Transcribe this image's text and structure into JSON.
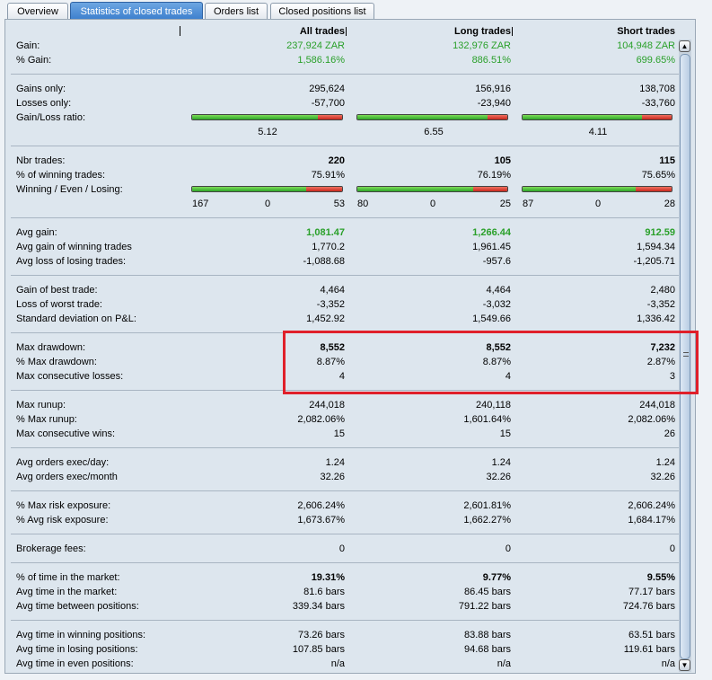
{
  "tabs": [
    {
      "label": "Overview"
    },
    {
      "label": "Statistics of closed trades"
    },
    {
      "label": "Orders list"
    },
    {
      "label": "Closed positions list"
    }
  ],
  "columns": {
    "all": "All trades",
    "long": "Long trades",
    "short": "Short trades"
  },
  "gain": {
    "label": "Gain:",
    "all": "237,924 ZAR",
    "long": "132,976 ZAR",
    "short": "104,948 ZAR"
  },
  "pct_gain": {
    "label": "% Gain:",
    "all": "1,586.16%",
    "long": "886.51%",
    "short": "699.65%"
  },
  "gains_only": {
    "label": "Gains only:",
    "all": "295,624",
    "long": "156,916",
    "short": "138,708"
  },
  "losses_only": {
    "label": "Losses only:",
    "all": "-57,700",
    "long": "-23,940",
    "short": "-33,760"
  },
  "gl_ratio": {
    "label": "Gain/Loss ratio:",
    "all": "5.12",
    "long": "6.55",
    "short": "4.11"
  },
  "gl_bar": {
    "all": 0.84,
    "long": 0.87,
    "short": 0.8
  },
  "nbr_trades": {
    "label": "Nbr trades:",
    "all": "220",
    "long": "105",
    "short": "115"
  },
  "pct_winning": {
    "label": "% of winning trades:",
    "all": "75.91%",
    "long": "76.19%",
    "short": "75.65%"
  },
  "wel": {
    "label": "Winning / Even / Losing:",
    "all": {
      "w": "167",
      "e": "0",
      "l": "53"
    },
    "long": {
      "w": "80",
      "e": "0",
      "l": "25"
    },
    "short": {
      "w": "87",
      "e": "0",
      "l": "28"
    }
  },
  "wel_bar": {
    "all": 0.76,
    "long": 0.77,
    "short": 0.76
  },
  "avg_gain": {
    "label": "Avg gain:",
    "all": "1,081.47",
    "long": "1,266.44",
    "short": "912.59"
  },
  "avg_gain_win": {
    "label": "Avg gain of winning trades",
    "all": "1,770.2",
    "long": "1,961.45",
    "short": "1,594.34"
  },
  "avg_loss_lose": {
    "label": "Avg loss of losing trades:",
    "all": "-1,088.68",
    "long": "-957.6",
    "short": "-1,205.71"
  },
  "best": {
    "label": "Gain of best trade:",
    "all": "4,464",
    "long": "4,464",
    "short": "2,480"
  },
  "worst": {
    "label": "Loss of worst trade:",
    "all": "-3,352",
    "long": "-3,032",
    "short": "-3,352"
  },
  "stddev": {
    "label": "Standard deviation on P&L:",
    "all": "1,452.92",
    "long": "1,549.66",
    "short": "1,336.42"
  },
  "max_dd": {
    "label": "Max drawdown:",
    "all": "8,552",
    "long": "8,552",
    "short": "7,232"
  },
  "pct_max_dd": {
    "label": "% Max drawdown:",
    "all": "8.87%",
    "long": "8.87%",
    "short": "2.87%"
  },
  "max_consec_loss": {
    "label": "Max consecutive losses:",
    "all": "4",
    "long": "4",
    "short": "3"
  },
  "max_runup": {
    "label": "Max runup:",
    "all": "244,018",
    "long": "240,118",
    "short": "244,018"
  },
  "pct_max_runup": {
    "label": "% Max runup:",
    "all": "2,082.06%",
    "long": "1,601.64%",
    "short": "2,082.06%"
  },
  "max_consec_win": {
    "label": "Max consecutive wins:",
    "all": "15",
    "long": "15",
    "short": "26"
  },
  "orders_day": {
    "label": "Avg orders exec/day:",
    "all": "1.24",
    "long": "1.24",
    "short": "1.24"
  },
  "orders_month": {
    "label": "Avg orders exec/month",
    "all": "32.26",
    "long": "32.26",
    "short": "32.26"
  },
  "max_risk": {
    "label": "% Max risk exposure:",
    "all": "2,606.24%",
    "long": "2,601.81%",
    "short": "2,606.24%"
  },
  "avg_risk": {
    "label": "% Avg risk exposure:",
    "all": "1,673.67%",
    "long": "1,662.27%",
    "short": "1,684.17%"
  },
  "fees": {
    "label": "Brokerage fees:",
    "all": "0",
    "long": "0",
    "short": "0"
  },
  "time_market_pct": {
    "label": "% of time in the market:",
    "all": "19.31%",
    "long": "9.77%",
    "short": "9.55%"
  },
  "avg_time_market": {
    "label": "Avg time in the market:",
    "all": "81.6 bars",
    "long": "86.45 bars",
    "short": "77.17 bars"
  },
  "avg_time_between": {
    "label": "Avg time between positions:",
    "all": "339.34 bars",
    "long": "791.22 bars",
    "short": "724.76 bars"
  },
  "avg_time_win": {
    "label": "Avg time in winning positions:",
    "all": "73.26 bars",
    "long": "83.88 bars",
    "short": "63.51 bars"
  },
  "avg_time_lose": {
    "label": "Avg time in losing positions:",
    "all": "107.85 bars",
    "long": "94.68 bars",
    "short": "119.61 bars"
  },
  "avg_time_even": {
    "label": "Avg time in even positions:",
    "all": "n/a",
    "long": "n/a",
    "short": "n/a"
  },
  "colors": {
    "positive": "#2aa02a",
    "highlight": "#e0202a",
    "tab_active": "#3c7fcd"
  }
}
